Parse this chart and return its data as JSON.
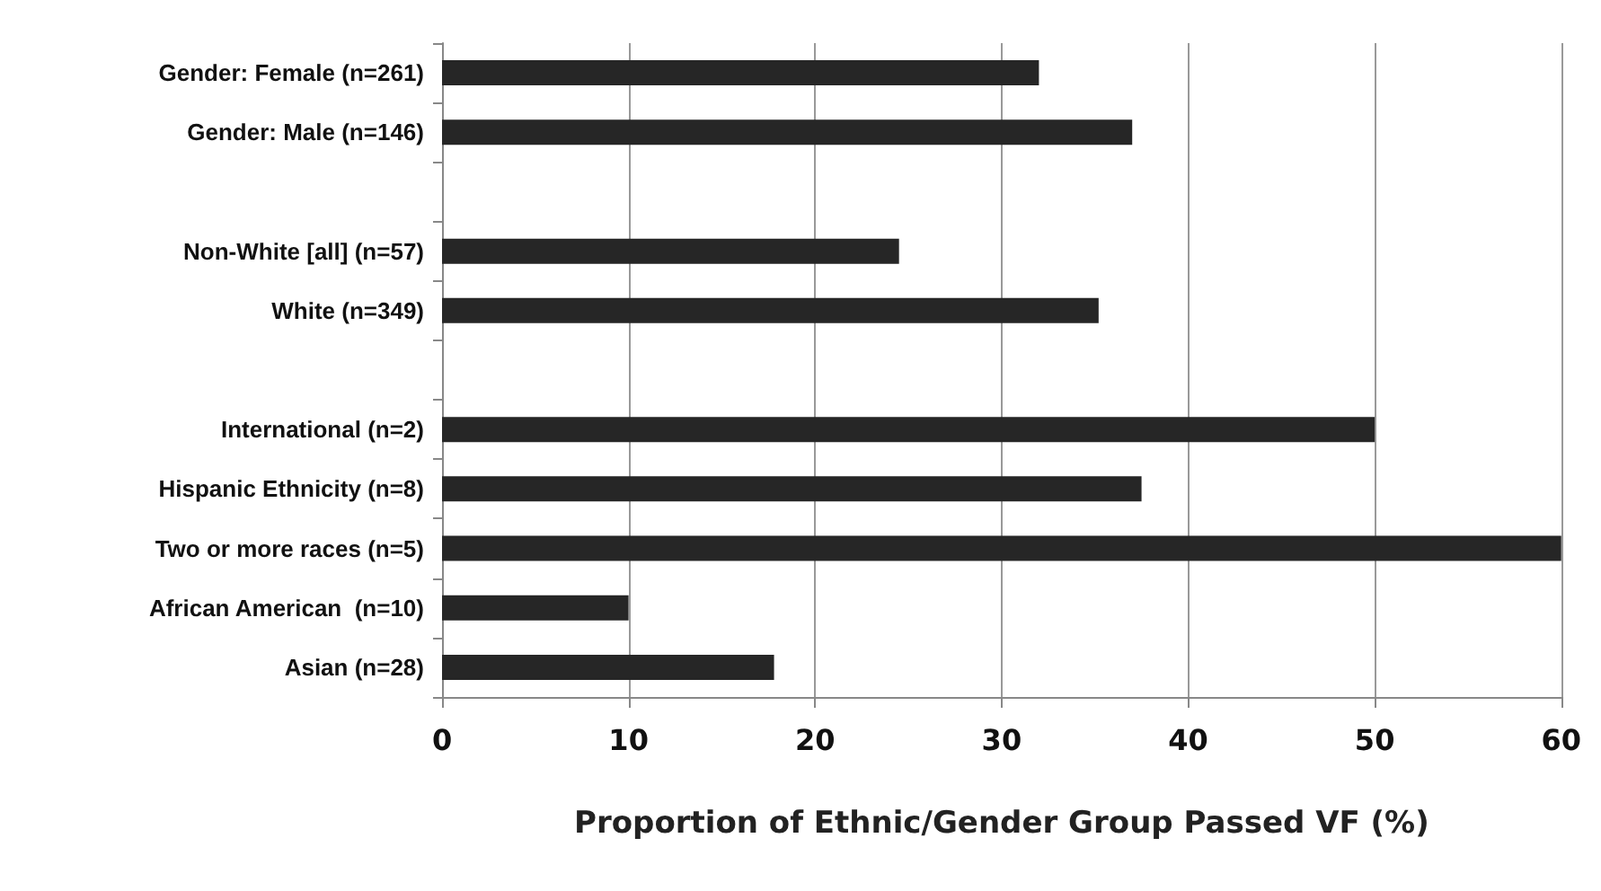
{
  "chart_data": {
    "type": "bar",
    "orientation": "horizontal",
    "xlabel": "Proportion of Ethnic/Gender Group Passed VF (%)",
    "categories": [
      "Gender: Female (n=261)",
      "Gender: Male (n=146)",
      null,
      "Non-White [all] (n=57)",
      "White (n=349)",
      null,
      "International (n=2)",
      "Hispanic Ethnicity (n=8)",
      "Two or more races (n=5)",
      "African American  (n=10)",
      "Asian (n=28)"
    ],
    "values": [
      32.0,
      37.0,
      null,
      24.5,
      35.2,
      null,
      50,
      37.5,
      60,
      10,
      17.8
    ],
    "color": "#262626",
    "xlim": [
      0,
      60
    ],
    "xticks": [
      0,
      10,
      20,
      30,
      40,
      50,
      60
    ],
    "grid": "x"
  }
}
